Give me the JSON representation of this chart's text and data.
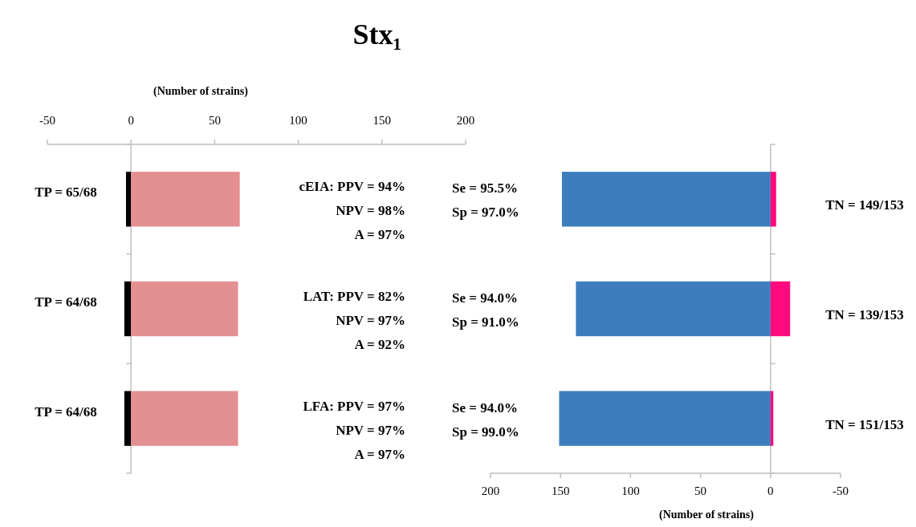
{
  "chart_data": [
    {
      "type": "bar",
      "title": "Stx₁",
      "orientation": "horizontal",
      "stacked": true,
      "categories": [
        null,
        null,
        null
      ],
      "series": [
        {
          "color": "#000000",
          "values": [
            -3,
            -4,
            -4
          ]
        },
        {
          "color": "#e48f91",
          "values": [
            65,
            64,
            64
          ]
        }
      ],
      "xlabel": "(Number of  strains)",
      "xlim": [
        -50,
        200
      ],
      "xticks": [
        -50,
        0,
        50,
        100,
        150,
        200
      ],
      "annotations": [
        "TP = 65/68",
        "TP = 64/68",
        "TP = 64/68",
        "cEIA: PPV = 94%",
        "NPV = 98%",
        "A  =  97%",
        "LAT: PPV  = 82%",
        "NPV = 97%",
        "A  =  92%",
        "LFA: PPV = 97%",
        "NPV = 97%",
        "A  =  97%"
      ]
    },
    {
      "type": "bar",
      "orientation": "horizontal",
      "stacked": true,
      "categories": [
        null,
        null,
        null
      ],
      "series": [
        {
          "color": "#3d7dbe",
          "values": [
            149,
            139,
            151
          ]
        },
        {
          "color": "#ff0b7f",
          "values": [
            -4,
            -14,
            -2
          ]
        }
      ],
      "xlabel": "(Number of  strains)",
      "xlim": [
        200,
        -50
      ],
      "xticks": [
        200,
        150,
        100,
        50,
        0,
        -50
      ],
      "annotations": [
        "Se  = 95.5%",
        "Sp  = 97.0%",
        "Se  = 94.0%",
        "Sp  = 91.0%",
        "Se  = 94.0%",
        "Sp  = 99.0%",
        "TN = 149/153",
        "TN = 139/153",
        "TN = 151/153"
      ]
    }
  ]
}
